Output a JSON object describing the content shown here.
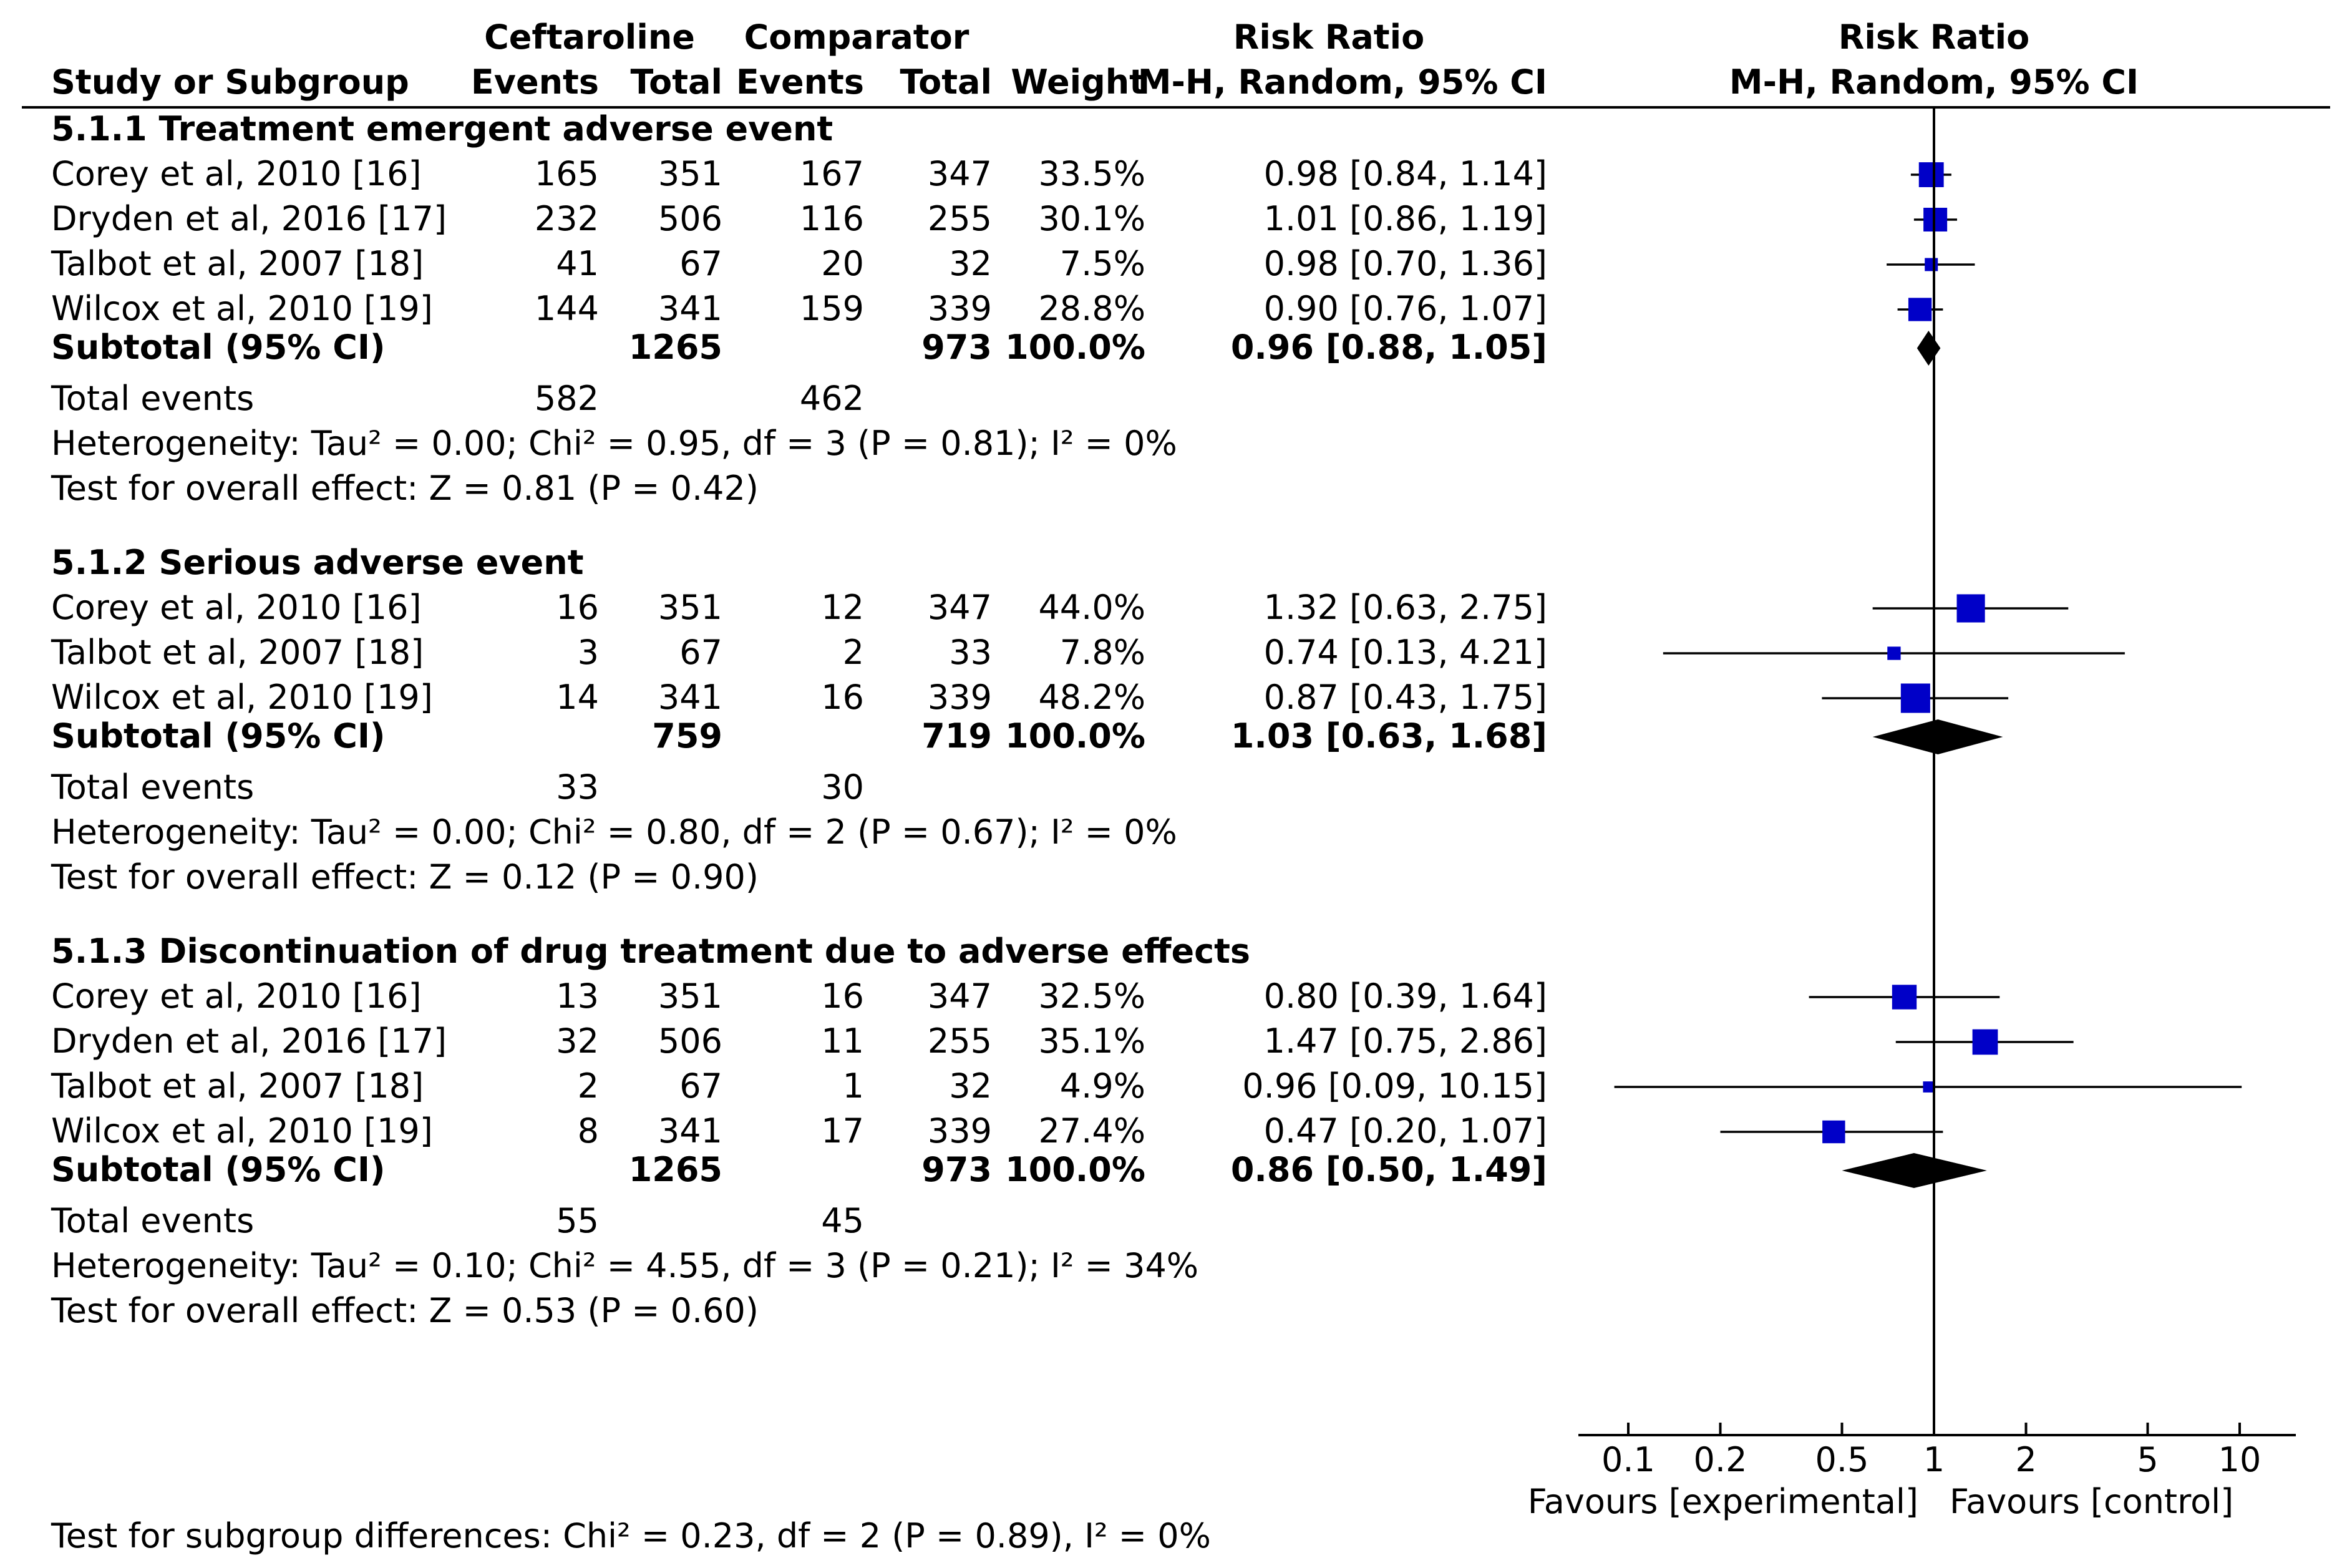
{
  "headers": {
    "group1": "Ceftaroline",
    "group2": "Comparator",
    "study": "Study or Subgroup",
    "events1": "Events",
    "total1": "Total",
    "events2": "Events",
    "total2": "Total",
    "weight": "Weight",
    "rr_title": "Risk Ratio",
    "rr_method": "M-H, Random, 95% CI",
    "plot_title": "Risk Ratio",
    "plot_method": "M-H, Random, 95% CI"
  },
  "chart_data": {
    "type": "forest",
    "xscale": "log",
    "null_value": 1,
    "x_ticks": [
      0.1,
      0.2,
      0.5,
      1,
      2,
      5,
      10
    ],
    "x_tick_labels": [
      "0.1",
      "0.2",
      "0.5",
      "1",
      "2",
      "5",
      "10"
    ],
    "xlim": [
      0.07,
      15
    ],
    "favours_left": "Favours [experimental]",
    "favours_right": "Favours [control]",
    "subgroups": [
      {
        "title": "5.1.1 Treatment emergent adverse event",
        "studies": [
          {
            "name": "Corey et al, 2010 [16]",
            "events1": "165",
            "total1": "351",
            "events2": "167",
            "total2": "347",
            "weight": "33.5%",
            "ci_text": "0.98 [0.84, 1.14]",
            "rr": 0.98,
            "lo": 0.84,
            "hi": 1.14,
            "w": 33.5
          },
          {
            "name": "Dryden et al, 2016 [17]",
            "events1": "232",
            "total1": "506",
            "events2": "116",
            "total2": "255",
            "weight": "30.1%",
            "ci_text": "1.01 [0.86, 1.19]",
            "rr": 1.01,
            "lo": 0.86,
            "hi": 1.19,
            "w": 30.1
          },
          {
            "name": "Talbot et al, 2007 [18]",
            "events1": "41",
            "total1": "67",
            "events2": "20",
            "total2": "32",
            "weight": "7.5%",
            "ci_text": "0.98 [0.70, 1.36]",
            "rr": 0.98,
            "lo": 0.7,
            "hi": 1.36,
            "w": 7.5
          },
          {
            "name": "Wilcox et al, 2010 [19]",
            "events1": "144",
            "total1": "341",
            "events2": "159",
            "total2": "339",
            "weight": "28.8%",
            "ci_text": "0.90 [0.76, 1.07]",
            "rr": 0.9,
            "lo": 0.76,
            "hi": 1.07,
            "w": 28.8
          }
        ],
        "subtotal": {
          "label": "Subtotal (95% CI)",
          "total1": "1265",
          "total2": "973",
          "weight": "100.0%",
          "ci_text": "0.96 [0.88, 1.05]",
          "rr": 0.96,
          "lo": 0.88,
          "hi": 1.05
        },
        "total_events": {
          "label": "Total events",
          "events1": "582",
          "events2": "462"
        },
        "heterogeneity": "Heterogeneity: Tau² = 0.00; Chi² = 0.95, df = 3 (P = 0.81); I² = 0%",
        "overall_effect": "Test for overall effect: Z = 0.81 (P = 0.42)"
      },
      {
        "title": "5.1.2 Serious adverse event",
        "studies": [
          {
            "name": "Corey et al, 2010 [16]",
            "events1": "16",
            "total1": "351",
            "events2": "12",
            "total2": "347",
            "weight": "44.0%",
            "ci_text": "1.32 [0.63, 2.75]",
            "rr": 1.32,
            "lo": 0.63,
            "hi": 2.75,
            "w": 44.0
          },
          {
            "name": "Talbot et al, 2007 [18]",
            "events1": "3",
            "total1": "67",
            "events2": "2",
            "total2": "33",
            "weight": "7.8%",
            "ci_text": "0.74 [0.13, 4.21]",
            "rr": 0.74,
            "lo": 0.13,
            "hi": 4.21,
            "w": 7.8
          },
          {
            "name": "Wilcox et al, 2010 [19]",
            "events1": "14",
            "total1": "341",
            "events2": "16",
            "total2": "339",
            "weight": "48.2%",
            "ci_text": "0.87 [0.43, 1.75]",
            "rr": 0.87,
            "lo": 0.43,
            "hi": 1.75,
            "w": 48.2
          }
        ],
        "subtotal": {
          "label": "Subtotal (95% CI)",
          "total1": "759",
          "total2": "719",
          "weight": "100.0%",
          "ci_text": "1.03 [0.63, 1.68]",
          "rr": 1.03,
          "lo": 0.63,
          "hi": 1.68
        },
        "total_events": {
          "label": "Total events",
          "events1": "33",
          "events2": "30"
        },
        "heterogeneity": "Heterogeneity: Tau² = 0.00; Chi² = 0.80, df = 2 (P = 0.67); I² = 0%",
        "overall_effect": "Test for overall effect: Z = 0.12 (P = 0.90)"
      },
      {
        "title": "5.1.3 Discontinuation of drug treatment due to adverse effects",
        "studies": [
          {
            "name": "Corey et al, 2010 [16]",
            "events1": "13",
            "total1": "351",
            "events2": "16",
            "total2": "347",
            "weight": "32.5%",
            "ci_text": "0.80 [0.39, 1.64]",
            "rr": 0.8,
            "lo": 0.39,
            "hi": 1.64,
            "w": 32.5
          },
          {
            "name": "Dryden et al, 2016 [17]",
            "events1": "32",
            "total1": "506",
            "events2": "11",
            "total2": "255",
            "weight": "35.1%",
            "ci_text": "1.47 [0.75, 2.86]",
            "rr": 1.47,
            "lo": 0.75,
            "hi": 2.86,
            "w": 35.1
          },
          {
            "name": "Talbot et al, 2007 [18]",
            "events1": "2",
            "total1": "67",
            "events2": "1",
            "total2": "32",
            "weight": "4.9%",
            "ci_text": "0.96 [0.09, 10.15]",
            "rr": 0.96,
            "lo": 0.09,
            "hi": 10.15,
            "w": 4.9
          },
          {
            "name": "Wilcox et al, 2010 [19]",
            "events1": "8",
            "total1": "341",
            "events2": "17",
            "total2": "339",
            "weight": "27.4%",
            "ci_text": "0.47 [0.20, 1.07]",
            "rr": 0.47,
            "lo": 0.2,
            "hi": 1.07,
            "w": 27.4
          }
        ],
        "subtotal": {
          "label": "Subtotal (95% CI)",
          "total1": "1265",
          "total2": "973",
          "weight": "100.0%",
          "ci_text": "0.86 [0.50, 1.49]",
          "rr": 0.86,
          "lo": 0.5,
          "hi": 1.49
        },
        "total_events": {
          "label": "Total events",
          "events1": "55",
          "events2": "45"
        },
        "heterogeneity": "Heterogeneity: Tau² = 0.10; Chi² = 4.55, df = 3 (P = 0.21); I² = 34%",
        "overall_effect": "Test for overall effect: Z = 0.53 (P = 0.60)"
      }
    ],
    "subgroup_differences": "Test for subgroup differences: Chi² = 0.23, df = 2 (P = 0.89), I² = 0%"
  },
  "colors": {
    "square": "#0000c8",
    "diamond": "#000000",
    "line": "#000000",
    "text": "#000000"
  }
}
